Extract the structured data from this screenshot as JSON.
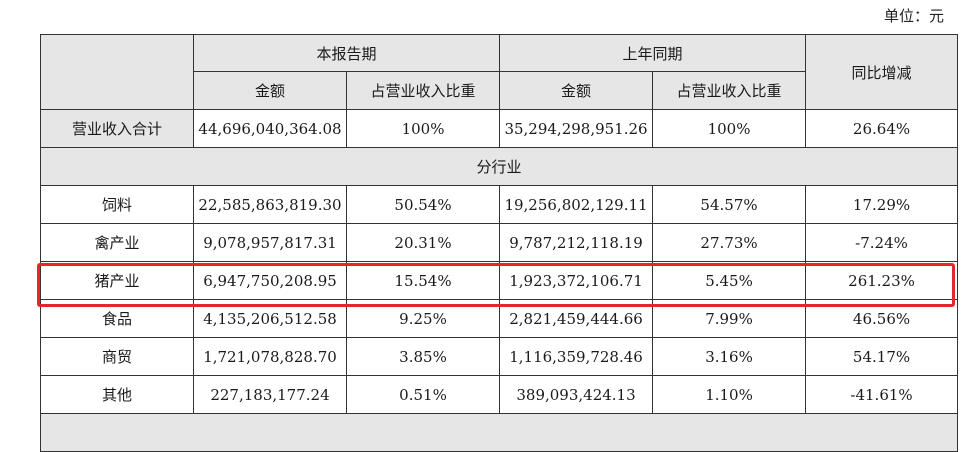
{
  "unit_label": "单位：元",
  "header": {
    "current_period": "本报告期",
    "prior_period": "上年同期",
    "yoy": "同比增减",
    "amount": "金额",
    "share": "占营业收入比重"
  },
  "total_row": {
    "label": "营业收入合计",
    "cur_amount": "44,696,040,364.08",
    "cur_share": "100%",
    "prior_amount": "35,294,298,951.26",
    "prior_share": "100%",
    "yoy": "26.64%"
  },
  "section": {
    "label": "分行业"
  },
  "rows": [
    {
      "label": "饲料",
      "cur_amount": "22,585,863,819.30",
      "cur_share": "50.54%",
      "prior_amount": "19,256,802,129.11",
      "prior_share": "54.57%",
      "yoy": "17.29%"
    },
    {
      "label": "禽产业",
      "cur_amount": "9,078,957,817.31",
      "cur_share": "20.31%",
      "prior_amount": "9,787,212,118.19",
      "prior_share": "27.73%",
      "yoy": "-7.24%"
    },
    {
      "label": "猪产业",
      "cur_amount": "6,947,750,208.95",
      "cur_share": "15.54%",
      "prior_amount": "1,923,372,106.71",
      "prior_share": "5.45%",
      "yoy": "261.23%"
    },
    {
      "label": "食品",
      "cur_amount": "4,135,206,512.58",
      "cur_share": "9.25%",
      "prior_amount": "2,821,459,444.66",
      "prior_share": "7.99%",
      "yoy": "46.56%"
    },
    {
      "label": "商贸",
      "cur_amount": "1,721,078,828.70",
      "cur_share": "3.85%",
      "prior_amount": "1,116,359,728.46",
      "prior_share": "3.16%",
      "yoy": "54.17%"
    },
    {
      "label": "其他",
      "cur_amount": "227,183,177.24",
      "cur_share": "0.51%",
      "prior_amount": "389,093,424.13",
      "prior_share": "1.10%",
      "yoy": "-41.61%"
    }
  ],
  "colors": {
    "highlight": "#e8262a",
    "header_bg": "#e6e6e6"
  }
}
